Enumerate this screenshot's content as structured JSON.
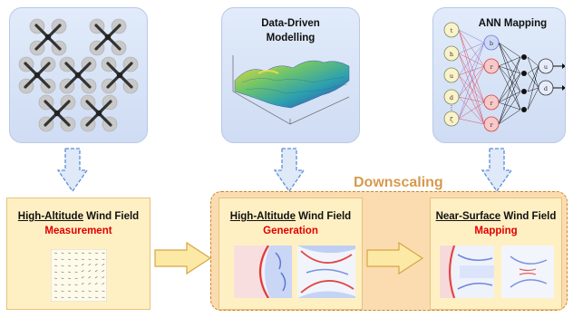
{
  "top_panels": {
    "drones": {},
    "data_driven": {
      "title_line1": "Data-Driven",
      "title_line2": "Modelling"
    },
    "ann": {
      "title": "ANN Mapping",
      "input_labels": [
        "t",
        "h",
        "u",
        "d",
        "ζ"
      ],
      "hidden_labels": [
        "b",
        "r",
        "r",
        "r"
      ],
      "output_labels": [
        "u",
        "d"
      ]
    }
  },
  "bottom": {
    "measurement": {
      "title_underlined": "High-Altitude",
      "title_rest": " Wind Field",
      "subtitle": "Measurement"
    },
    "generation": {
      "title_underlined": "High-Altitude",
      "title_rest": " Wind Field",
      "subtitle": "Generation"
    },
    "mapping": {
      "title_underlined": "Near-Surface",
      "title_rest": " Wind Field",
      "subtitle": "Mapping"
    },
    "downscaling_label": "Downscaling"
  },
  "colors": {
    "panel": "#d6e2f6",
    "yellow": "#fff0c4",
    "accent_red": "#e00000",
    "downscale": "#fbdcb1",
    "arrow_yellow": "#fde9a6"
  }
}
